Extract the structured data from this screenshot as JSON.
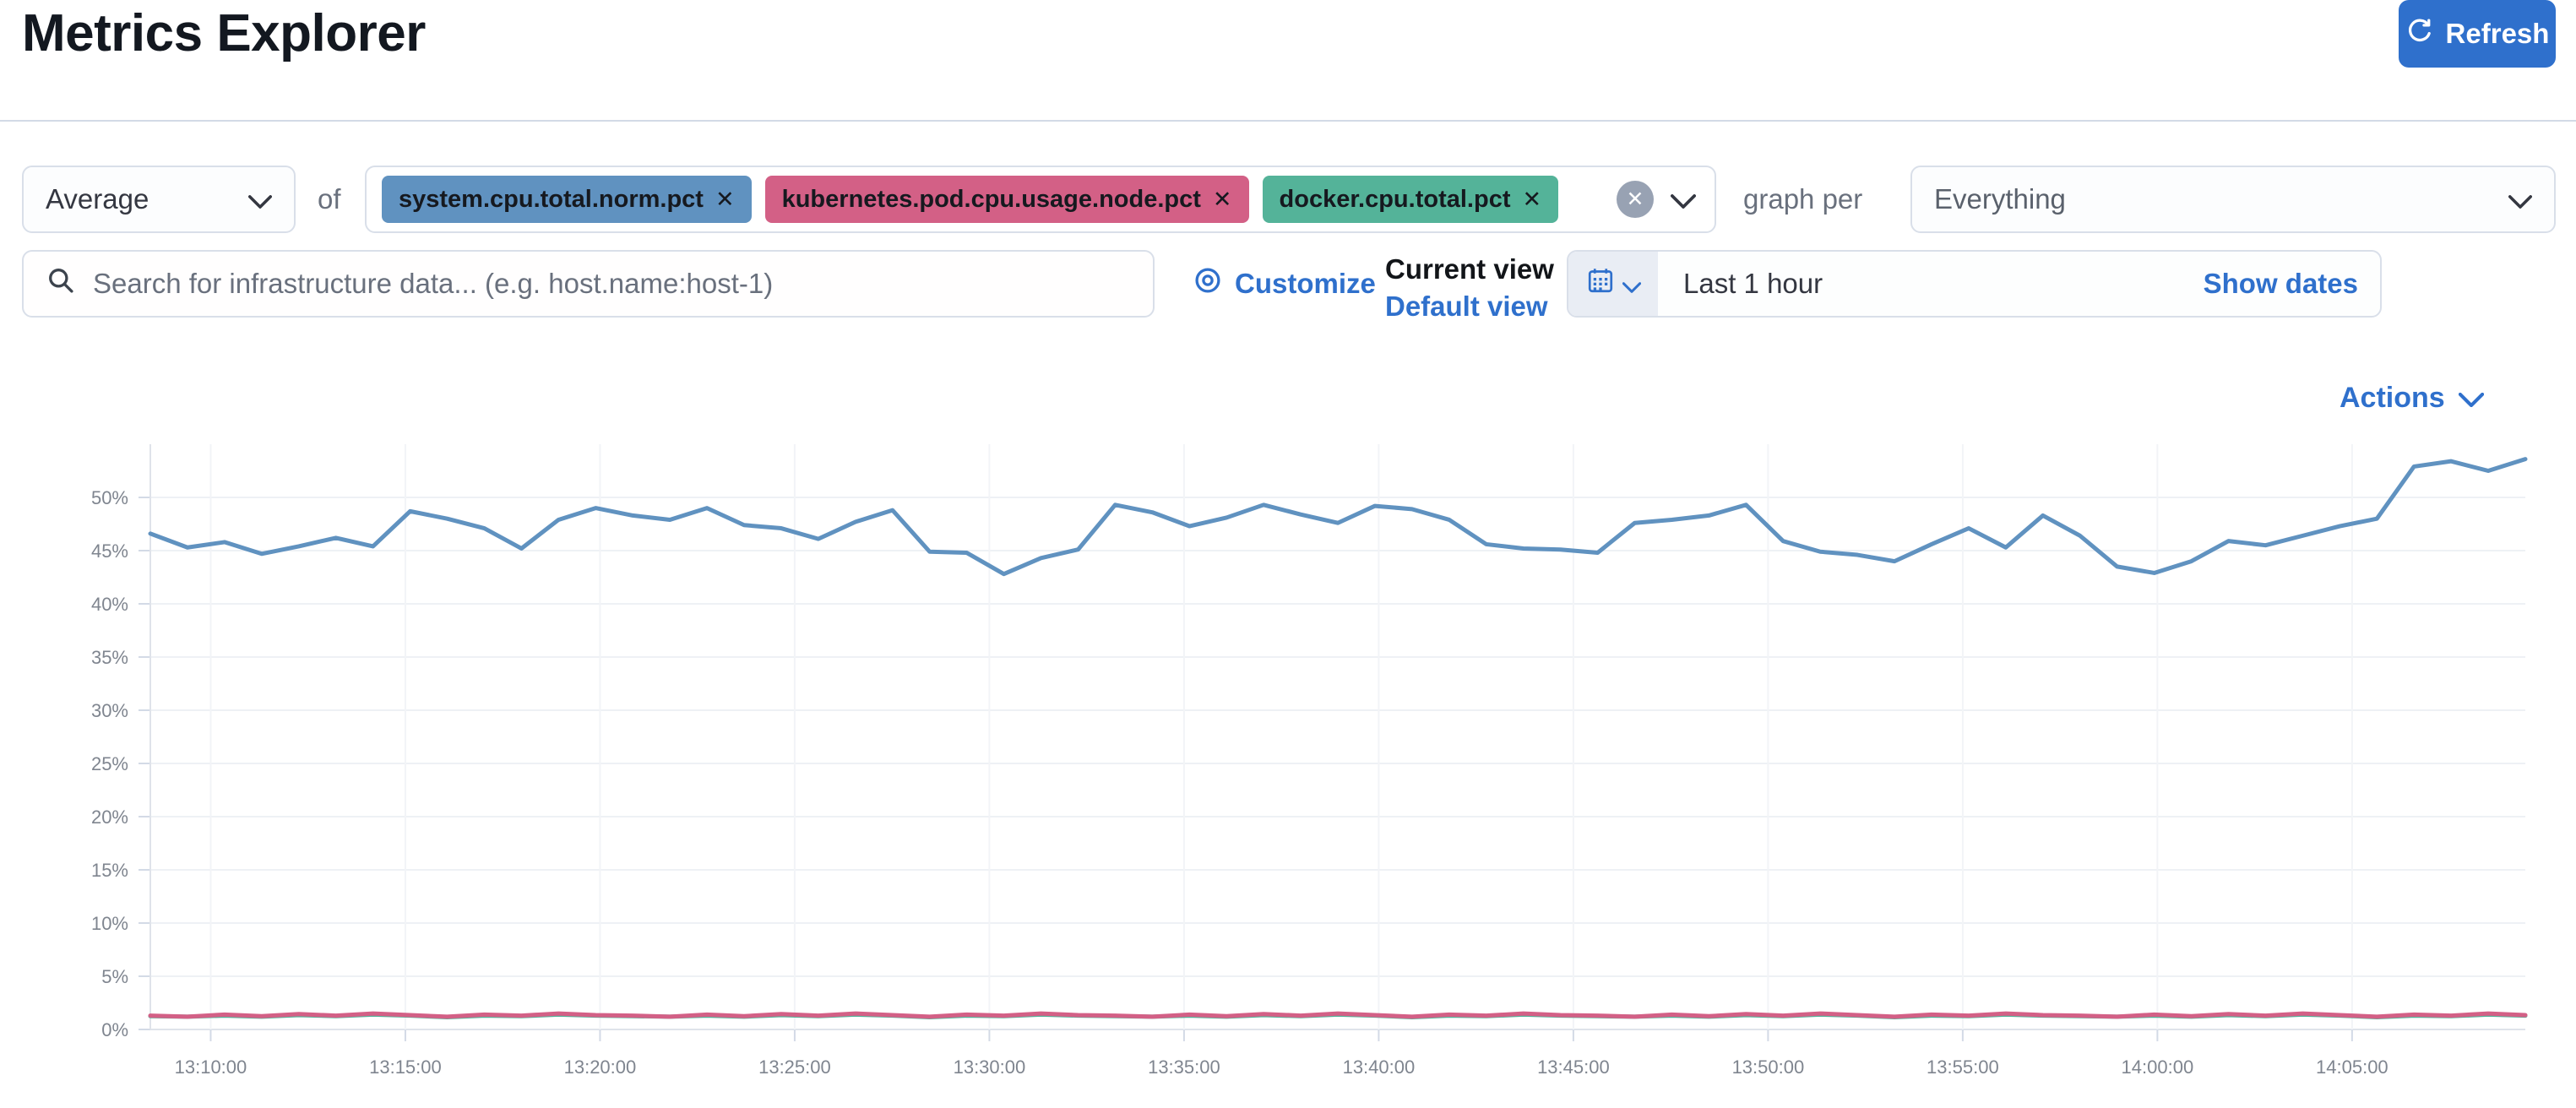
{
  "page": {
    "title": "Metrics Explorer"
  },
  "toolbar": {
    "aggregation_select": {
      "value": "Average"
    },
    "of_label": "of",
    "metrics_field": {
      "pills": [
        {
          "label": "system.cpu.total.norm.pct",
          "color": "#6092C0"
        },
        {
          "label": "kubernetes.pod.cpu.usage.node.pct",
          "color": "#D36086"
        },
        {
          "label": "docker.cpu.total.pct",
          "color": "#54B399"
        }
      ],
      "clear_icon": "✕"
    },
    "graph_per_label": "graph per",
    "group_by_select": {
      "value": "Everything"
    }
  },
  "filter_bar": {
    "search": {
      "placeholder": "Search for infrastructure data... (e.g. host.name:host-1)",
      "value": ""
    },
    "customize_label": "Customize",
    "current_view_label": "Current view",
    "default_view_label": "Default view",
    "time_picker": {
      "range_label": "Last 1 hour",
      "show_dates_label": "Show dates"
    },
    "refresh_button": {
      "label": "Refresh",
      "color": "#2F70CC"
    }
  },
  "chart_header": {
    "actions_label": "Actions"
  },
  "chart_data": {
    "type": "line",
    "legend": "hidden",
    "grid": true,
    "y_axis": {
      "unit": "%",
      "min": 0,
      "max": 55,
      "tick_labels": [
        "0%",
        "5%",
        "10%",
        "15%",
        "20%",
        "25%",
        "30%",
        "35%",
        "40%",
        "45%",
        "50%"
      ]
    },
    "x_axis": {
      "tick_interval": "5m",
      "tick_labels": [
        "13:10:00",
        "13:15:00",
        "13:20:00",
        "13:25:00",
        "13:30:00",
        "13:35:00",
        "13:40:00",
        "13:45:00",
        "13:50:00",
        "13:55:00",
        "14:00:00",
        "14:05:00"
      ]
    },
    "series": [
      {
        "name": "system.cpu.total.norm.pct",
        "color": "#6092C0",
        "values": [
          46.6,
          45.3,
          45.8,
          44.7,
          45.4,
          46.2,
          45.4,
          48.7,
          48.0,
          47.1,
          45.2,
          47.9,
          49.0,
          48.3,
          47.9,
          49.0,
          47.4,
          47.1,
          46.1,
          47.7,
          48.8,
          44.9,
          44.8,
          42.8,
          44.3,
          45.1,
          49.3,
          48.6,
          47.3,
          48.1,
          49.3,
          48.4,
          47.6,
          49.2,
          48.9,
          47.9,
          45.6,
          45.2,
          45.1,
          44.8,
          47.6,
          47.9,
          48.3,
          49.3,
          45.9,
          44.9,
          44.6,
          44.0,
          45.6,
          47.1,
          45.3,
          48.3,
          46.4,
          43.5,
          42.9,
          44.0,
          45.9,
          45.5,
          46.4,
          47.3,
          48.0,
          52.9,
          53.4,
          52.5,
          53.6
        ]
      },
      {
        "name": "kubernetes.pod.cpu.usage.node.pct",
        "color": "#D36086",
        "values": [
          1.3,
          1.2,
          1.4,
          1.25,
          1.45,
          1.3,
          1.5,
          1.35,
          1.2,
          1.4,
          1.3,
          1.5,
          1.35,
          1.3,
          1.2,
          1.4,
          1.25,
          1.45,
          1.3,
          1.5,
          1.35,
          1.2,
          1.4,
          1.3,
          1.5,
          1.35,
          1.3,
          1.2,
          1.4,
          1.25,
          1.45,
          1.3,
          1.5,
          1.35,
          1.2,
          1.4,
          1.3,
          1.5,
          1.35,
          1.3,
          1.2,
          1.4,
          1.25,
          1.45,
          1.3,
          1.5,
          1.35,
          1.2,
          1.4,
          1.3,
          1.5,
          1.35,
          1.3,
          1.2,
          1.4,
          1.25,
          1.45,
          1.3,
          1.5,
          1.35,
          1.2,
          1.4,
          1.3,
          1.5,
          1.35
        ]
      },
      {
        "name": "docker.cpu.total.pct",
        "color": "#54B399",
        "values": [
          1.25,
          1.2,
          1.3,
          1.2,
          1.35,
          1.25,
          1.4,
          1.3,
          1.15,
          1.3,
          1.25,
          1.4,
          1.3,
          1.25,
          1.2,
          1.3,
          1.2,
          1.35,
          1.25,
          1.4,
          1.3,
          1.15,
          1.3,
          1.25,
          1.4,
          1.3,
          1.25,
          1.2,
          1.3,
          1.2,
          1.35,
          1.25,
          1.4,
          1.3,
          1.15,
          1.3,
          1.25,
          1.4,
          1.3,
          1.25,
          1.2,
          1.3,
          1.2,
          1.35,
          1.25,
          1.4,
          1.3,
          1.15,
          1.3,
          1.25,
          1.4,
          1.3,
          1.25,
          1.2,
          1.3,
          1.2,
          1.35,
          1.25,
          1.4,
          1.3,
          1.15,
          1.3,
          1.25,
          1.4,
          1.3
        ]
      }
    ]
  }
}
